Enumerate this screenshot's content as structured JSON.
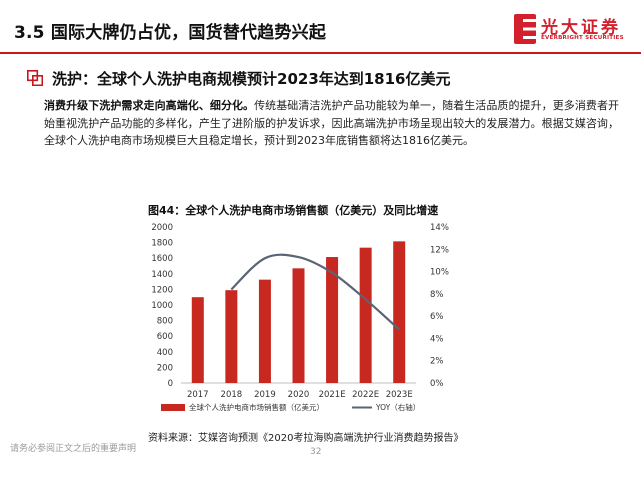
{
  "header": {
    "title": "3.5 国际大牌仍占优，国货替代趋势兴起",
    "logo_name": "光大证券",
    "logo_en": "EVERBRIGHT SECURITIES"
  },
  "section": {
    "title": "洗护：全球个人洗护电商规模预计2023年达到1816亿美元"
  },
  "paragraph": {
    "lead": "消费升级下洗护需求走向高端化、细分化。",
    "body": "传统基础清洁洗护产品功能较为单一，随着生活品质的提升，更多消费者开始重视洗护产品功能的多样化，产生了进阶版的护发诉求，因此高端洗护市场呈现出较大的发展潜力。根据艾媒咨询，全球个人洗护电商市场规模巨大且稳定增长，预计到2023年底销售额将达1816亿美元。"
  },
  "chart_caption": "图44：全球个人洗护电商市场销售额（亿美元）及同比增速",
  "chart_data": {
    "type": "bar",
    "categories": [
      "2017",
      "2018",
      "2019",
      "2020",
      "2021E",
      "2022E",
      "2023E"
    ],
    "series": [
      {
        "name": "全球个人洗护电商市场销售额（亿美元）",
        "type": "bar",
        "axis": "left",
        "values": [
          1100,
          1190,
          1325,
          1470,
          1615,
          1735,
          1816
        ]
      },
      {
        "name": "YOY（右轴）",
        "type": "line",
        "axis": "right",
        "values": [
          null,
          8.4,
          11.2,
          11.3,
          9.9,
          7.5,
          4.8
        ]
      }
    ],
    "y_left": {
      "min": 0,
      "max": 2000,
      "ticks": [
        0,
        200,
        400,
        600,
        800,
        1000,
        1200,
        1400,
        1600,
        1800,
        2000
      ]
    },
    "y_right": {
      "min": 0,
      "max": 14,
      "ticks": [
        "0%",
        "2%",
        "4%",
        "6%",
        "8%",
        "10%",
        "12%",
        "14%"
      ]
    },
    "legend_position": "bottom",
    "grid": false,
    "colors": {
      "bar": "#c7281f",
      "line": "#5b6475"
    }
  },
  "source": "资料来源：艾媒咨询预测《2020考拉海购高端洗护行业消费趋势报告》",
  "footer": {
    "disclaimer": "请务必参阅正文之后的重要声明",
    "page": "32"
  }
}
